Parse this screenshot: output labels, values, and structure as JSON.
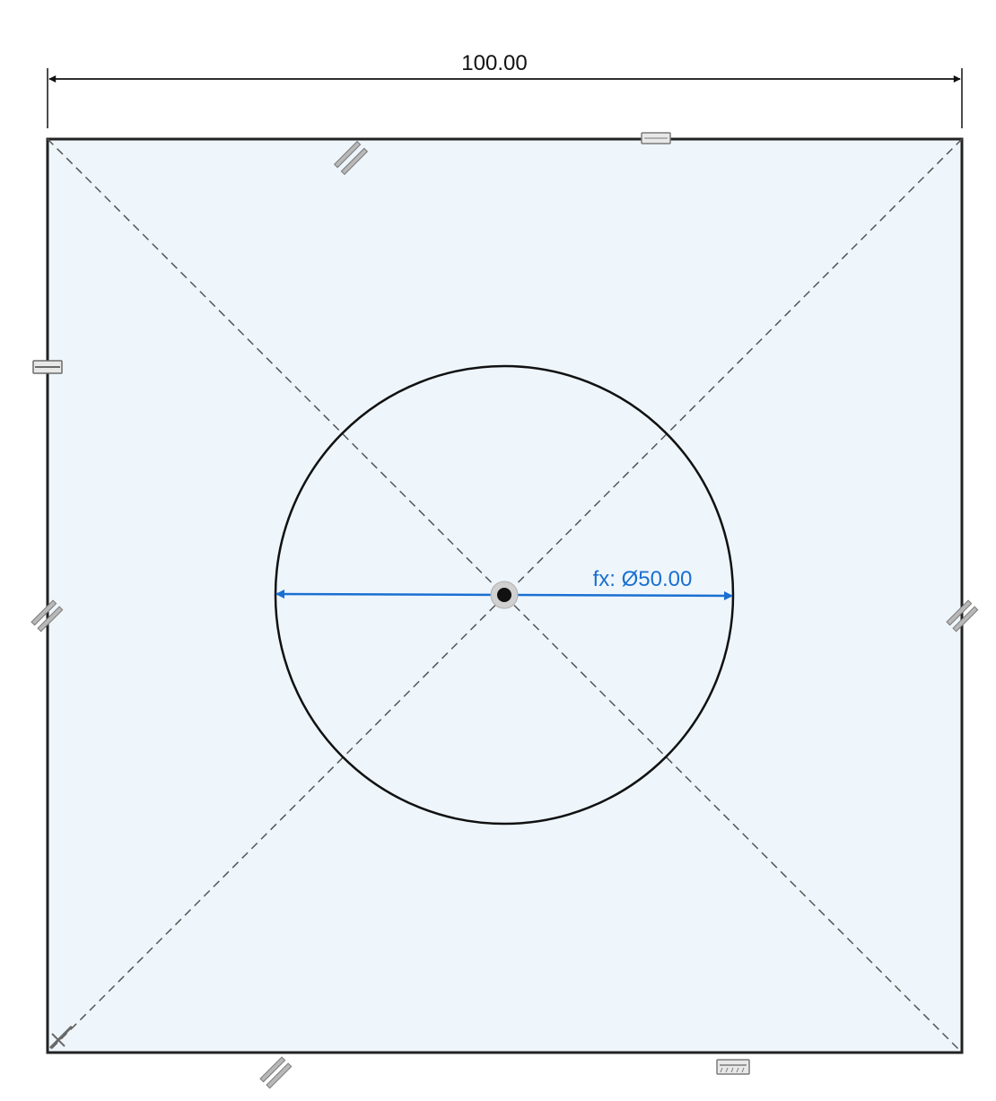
{
  "sketch": {
    "dimensions": {
      "width_label": "100.00",
      "diameter_label": "fx: Ø50.00"
    },
    "colors": {
      "canvas_background": "#ffffff",
      "profile_fill": "#eef6fc",
      "line": "#111111",
      "construction_line": "#555555",
      "dimension_line": "#111111",
      "active_dimension": "#1a6fd1",
      "constraint_glyph": "#8c8c8c"
    },
    "constraint_glyphs": [
      "parallel-icon",
      "horizontal-icon",
      "vertical-icon",
      "coincident-icon",
      "fix-icon"
    ]
  }
}
